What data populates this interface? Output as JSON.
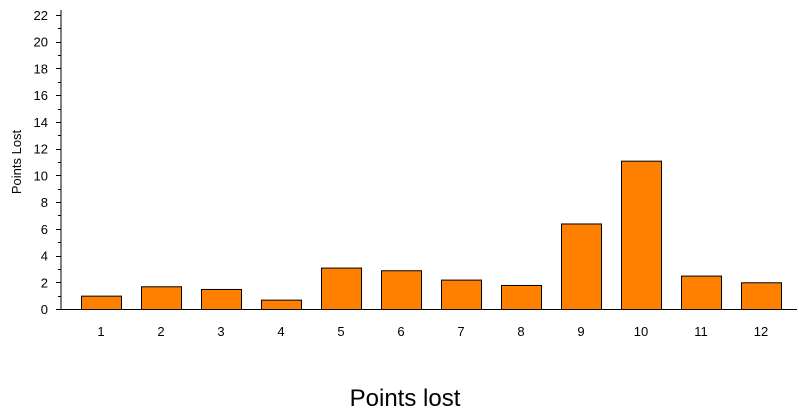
{
  "chart_data": {
    "type": "bar",
    "title": "",
    "xlabel": "Points lost",
    "ylabel": "Points Lost",
    "ylim": [
      0,
      22
    ],
    "yticks": [
      0,
      2,
      4,
      6,
      8,
      10,
      12,
      14,
      16,
      18,
      20,
      22
    ],
    "categories": [
      "1",
      "2",
      "3",
      "4",
      "5",
      "6",
      "7",
      "8",
      "9",
      "10",
      "11",
      "12"
    ],
    "values": [
      1.0,
      1.7,
      1.5,
      0.7,
      3.1,
      2.9,
      2.2,
      1.8,
      6.4,
      11.1,
      2.5,
      2.0
    ],
    "grid": false,
    "legend": "none",
    "bar_color": "#FF8000",
    "bar_outline_color": "#000000"
  }
}
